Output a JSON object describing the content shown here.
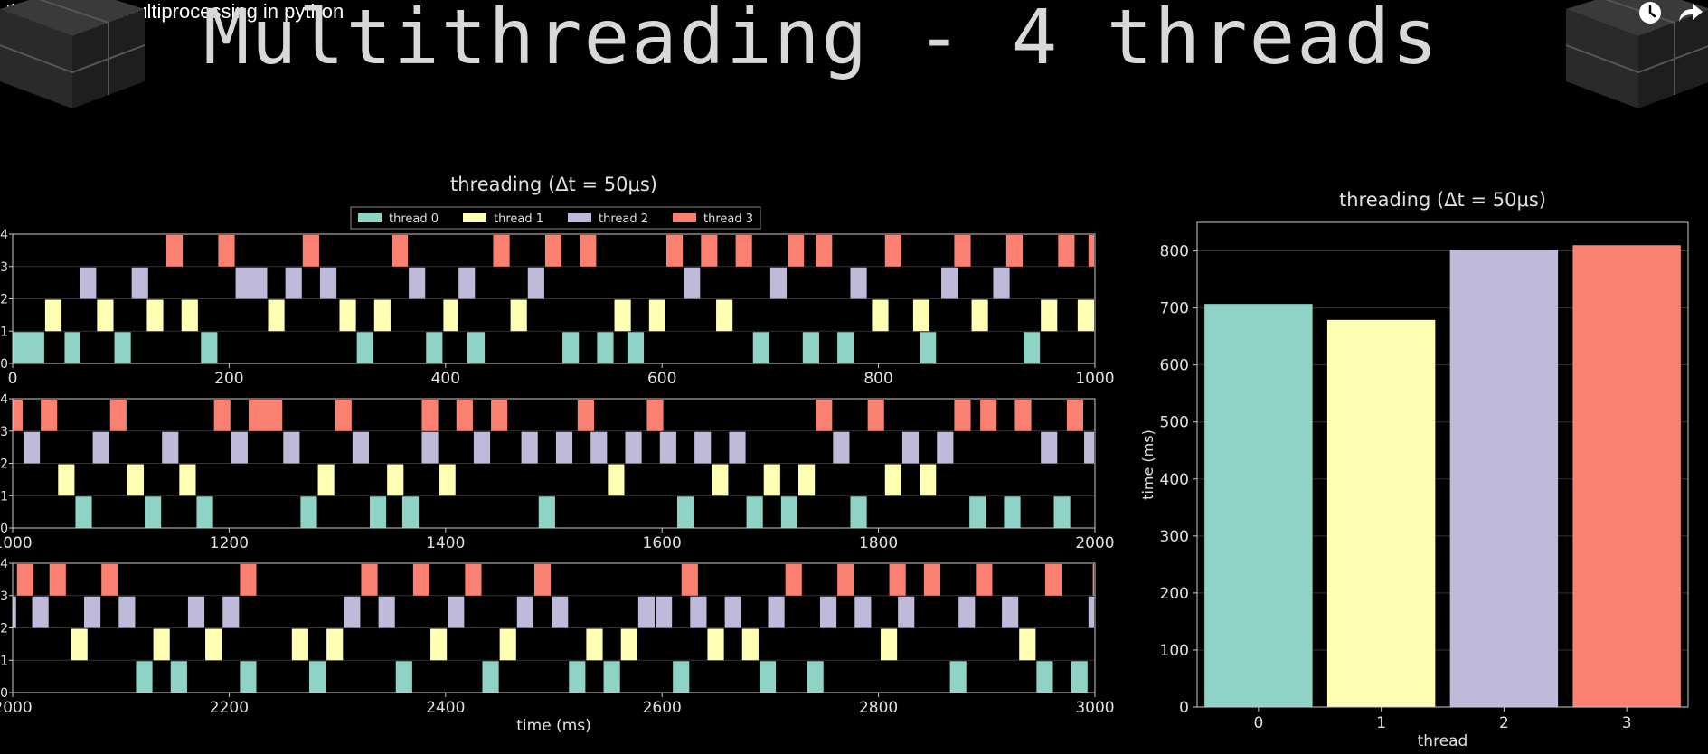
{
  "video": {
    "title": "threading vs multiprocessing in python",
    "icons": [
      "clock-icon",
      "share-icon"
    ]
  },
  "slide": {
    "title": "Multithreading - 4 threads"
  },
  "colors": {
    "thread_0": "#8fd3c7",
    "thread_1": "#ffffb3",
    "thread_2": "#bfbad9",
    "thread_3": "#fa8072",
    "axis": "#cccccc",
    "grid": "#333333",
    "background": "#000000"
  },
  "chart_data": [
    {
      "type": "timeline",
      "title": "threading (Δt = 50μs)",
      "xlabel": "time (ms)",
      "ylabel": "",
      "legend": {
        "placement": "top-center",
        "entries": [
          "thread 0",
          "thread 1",
          "thread 2",
          "thread 3"
        ]
      },
      "panels": [
        {
          "xlim": [
            0,
            1000
          ],
          "ylim": [
            0,
            4
          ],
          "xticks": [
            "0",
            "200",
            "400",
            "600",
            "800",
            "1000"
          ],
          "yticks": [
            "0",
            "1",
            "2",
            "3",
            "4"
          ],
          "segments": {
            "thread 0": [
              [
                0,
                30
              ],
              [
                48,
                63
              ],
              [
                94,
                110
              ],
              [
                174,
                190
              ],
              [
                318,
                334
              ],
              [
                382,
                398
              ],
              [
                420,
                437
              ],
              [
                508,
                524
              ],
              [
                540,
                556
              ],
              [
                568,
                584
              ],
              [
                684,
                700
              ],
              [
                730,
                746
              ],
              [
                762,
                778
              ],
              [
                838,
                854
              ],
              [
                934,
                950
              ]
            ],
            "thread 1": [
              [
                30,
                46
              ],
              [
                78,
                94
              ],
              [
                124,
                140
              ],
              [
                156,
                172
              ],
              [
                236,
                252
              ],
              [
                302,
                318
              ],
              [
                334,
                350
              ],
              [
                398,
                412
              ],
              [
                460,
                476
              ],
              [
                556,
                572
              ],
              [
                588,
                604
              ],
              [
                650,
                666
              ],
              [
                794,
                810
              ],
              [
                832,
                848
              ],
              [
                886,
                902
              ],
              [
                950,
                966
              ],
              [
                984,
                1000
              ]
            ],
            "thread 2": [
              [
                62,
                78
              ],
              [
                110,
                126
              ],
              [
                206,
                236
              ],
              [
                252,
                268
              ],
              [
                284,
                300
              ],
              [
                366,
                382
              ],
              [
                412,
                428
              ],
              [
                476,
                492
              ],
              [
                620,
                636
              ],
              [
                700,
                716
              ],
              [
                774,
                790
              ],
              [
                858,
                874
              ],
              [
                906,
                922
              ]
            ],
            "thread 3": [
              [
                142,
                158
              ],
              [
                190,
                206
              ],
              [
                268,
                284
              ],
              [
                350,
                366
              ],
              [
                444,
                460
              ],
              [
                492,
                508
              ],
              [
                524,
                540
              ],
              [
                604,
                620
              ],
              [
                636,
                652
              ],
              [
                668,
                684
              ],
              [
                716,
                732
              ],
              [
                742,
                758
              ],
              [
                806,
                822
              ],
              [
                870,
                886
              ],
              [
                918,
                934
              ],
              [
                966,
                982
              ],
              [
                994,
                1000
              ]
            ]
          }
        },
        {
          "xlim": [
            1000,
            2000
          ],
          "ylim": [
            0,
            4
          ],
          "xticks": [
            "1000",
            "1200",
            "1400",
            "1600",
            "1800",
            "2000"
          ],
          "yticks": [
            "0",
            "1",
            "2",
            "3",
            "4"
          ],
          "segments": {
            "thread 0": [
              [
                1058,
                1074
              ],
              [
                1122,
                1138
              ],
              [
                1170,
                1186
              ],
              [
                1266,
                1282
              ],
              [
                1330,
                1346
              ],
              [
                1360,
                1376
              ],
              [
                1486,
                1502
              ],
              [
                1614,
                1630
              ],
              [
                1678,
                1694
              ],
              [
                1710,
                1726
              ],
              [
                1774,
                1790
              ],
              [
                1884,
                1900
              ],
              [
                1916,
                1932
              ],
              [
                1962,
                1978
              ]
            ],
            "thread 1": [
              [
                1042,
                1058
              ],
              [
                1106,
                1122
              ],
              [
                1154,
                1170
              ],
              [
                1282,
                1298
              ],
              [
                1346,
                1362
              ],
              [
                1394,
                1410
              ],
              [
                1550,
                1566
              ],
              [
                1646,
                1662
              ],
              [
                1694,
                1710
              ],
              [
                1726,
                1742
              ],
              [
                1806,
                1822
              ],
              [
                1838,
                1854
              ]
            ],
            "thread 2": [
              [
                1010,
                1026
              ],
              [
                1074,
                1090
              ],
              [
                1138,
                1154
              ],
              [
                1202,
                1218
              ],
              [
                1250,
                1266
              ],
              [
                1314,
                1330
              ],
              [
                1378,
                1394
              ],
              [
                1426,
                1442
              ],
              [
                1470,
                1486
              ],
              [
                1502,
                1518
              ],
              [
                1534,
                1550
              ],
              [
                1566,
                1582
              ],
              [
                1598,
                1614
              ],
              [
                1630,
                1646
              ],
              [
                1662,
                1678
              ],
              [
                1758,
                1774
              ],
              [
                1822,
                1838
              ],
              [
                1854,
                1870
              ],
              [
                1950,
                1966
              ],
              [
                1990,
                2000
              ]
            ],
            "thread 3": [
              [
                1000,
                1010
              ],
              [
                1026,
                1042
              ],
              [
                1090,
                1106
              ],
              [
                1186,
                1202
              ],
              [
                1218,
                1250
              ],
              [
                1298,
                1314
              ],
              [
                1378,
                1394
              ],
              [
                1410,
                1426
              ],
              [
                1442,
                1458
              ],
              [
                1522,
                1538
              ],
              [
                1586,
                1602
              ],
              [
                1742,
                1758
              ],
              [
                1790,
                1806
              ],
              [
                1870,
                1886
              ],
              [
                1894,
                1910
              ],
              [
                1926,
                1942
              ],
              [
                1974,
                1990
              ]
            ]
          }
        },
        {
          "xlim": [
            2000,
            3000
          ],
          "ylim": [
            0,
            4
          ],
          "xticks": [
            "2000",
            "2200",
            "2400",
            "2600",
            "2800",
            "3000"
          ],
          "yticks": [
            "0",
            "1",
            "2",
            "3",
            "4"
          ],
          "segments": {
            "thread 0": [
              [
                2114,
                2130
              ],
              [
                2146,
                2162
              ],
              [
                2210,
                2226
              ],
              [
                2274,
                2290
              ],
              [
                2354,
                2370
              ],
              [
                2434,
                2450
              ],
              [
                2514,
                2530
              ],
              [
                2546,
                2562
              ],
              [
                2610,
                2626
              ],
              [
                2690,
                2706
              ],
              [
                2734,
                2750
              ],
              [
                2866,
                2882
              ],
              [
                2946,
                2962
              ],
              [
                2978,
                2994
              ]
            ],
            "thread 1": [
              [
                2054,
                2070
              ],
              [
                2130,
                2146
              ],
              [
                2178,
                2194
              ],
              [
                2258,
                2274
              ],
              [
                2290,
                2306
              ],
              [
                2386,
                2402
              ],
              [
                2450,
                2466
              ],
              [
                2530,
                2546
              ],
              [
                2562,
                2578
              ],
              [
                2642,
                2658
              ],
              [
                2674,
                2690
              ],
              [
                2802,
                2818
              ],
              [
                2930,
                2946
              ]
            ],
            "thread 2": [
              [
                2000,
                2004
              ],
              [
                2018,
                2034
              ],
              [
                2066,
                2082
              ],
              [
                2098,
                2114
              ],
              [
                2162,
                2178
              ],
              [
                2194,
                2210
              ],
              [
                2306,
                2322
              ],
              [
                2338,
                2354
              ],
              [
                2402,
                2418
              ],
              [
                2466,
                2482
              ],
              [
                2498,
                2514
              ],
              [
                2578,
                2594
              ],
              [
                2594,
                2610
              ],
              [
                2626,
                2642
              ],
              [
                2658,
                2674
              ],
              [
                2698,
                2714
              ],
              [
                2746,
                2762
              ],
              [
                2778,
                2794
              ],
              [
                2818,
                2834
              ],
              [
                2874,
                2890
              ],
              [
                2914,
                2930
              ],
              [
                2994,
                3000
              ]
            ],
            "thread 3": [
              [
                2004,
                2020
              ],
              [
                2034,
                2050
              ],
              [
                2082,
                2098
              ],
              [
                2210,
                2226
              ],
              [
                2322,
                2338
              ],
              [
                2370,
                2386
              ],
              [
                2418,
                2434
              ],
              [
                2482,
                2498
              ],
              [
                2618,
                2634
              ],
              [
                2714,
                2730
              ],
              [
                2762,
                2778
              ],
              [
                2810,
                2826
              ],
              [
                2842,
                2858
              ],
              [
                2890,
                2906
              ],
              [
                2954,
                2970
              ],
              [
                2998,
                3000
              ]
            ]
          }
        }
      ]
    },
    {
      "type": "bar",
      "title": "threading (Δt = 50μs)",
      "categories": [
        "0",
        "1",
        "2",
        "3"
      ],
      "values": [
        707,
        679,
        802,
        810
      ],
      "xlabel": "thread",
      "ylabel": "time (ms)",
      "ylim": [
        0,
        850
      ],
      "yticks": [
        "0",
        "100",
        "200",
        "300",
        "400",
        "500",
        "600",
        "700",
        "800"
      ],
      "grid": true
    }
  ]
}
